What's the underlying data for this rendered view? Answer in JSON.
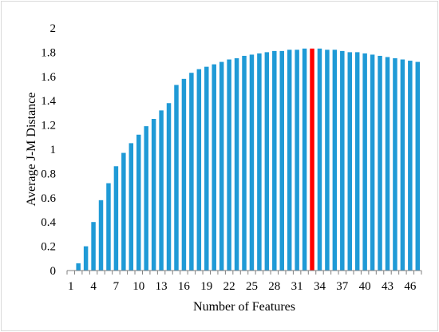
{
  "chart_data": {
    "type": "bar",
    "xlabel": "Number of Features",
    "ylabel": "Average J-M Distance",
    "ylim": [
      0,
      2
    ],
    "yticks": [
      0,
      0.2,
      0.4,
      0.6,
      0.8,
      1,
      1.2,
      1.4,
      1.6,
      1.8,
      2
    ],
    "xtick_labels": [
      "1",
      "4",
      "7",
      "10",
      "13",
      "16",
      "19",
      "22",
      "25",
      "28",
      "31",
      "34",
      "37",
      "40",
      "43",
      "46"
    ],
    "grid": false,
    "categories": [
      1,
      2,
      3,
      4,
      5,
      6,
      7,
      8,
      9,
      10,
      11,
      12,
      13,
      14,
      15,
      16,
      17,
      18,
      19,
      20,
      21,
      22,
      23,
      24,
      25,
      26,
      27,
      28,
      29,
      30,
      31,
      32,
      33,
      34,
      35,
      36,
      37,
      38,
      39,
      40,
      41,
      42,
      43,
      44,
      45,
      46,
      47
    ],
    "values": [
      0.0,
      0.06,
      0.2,
      0.4,
      0.58,
      0.72,
      0.86,
      0.97,
      1.05,
      1.12,
      1.19,
      1.25,
      1.32,
      1.38,
      1.53,
      1.58,
      1.63,
      1.66,
      1.68,
      1.7,
      1.72,
      1.74,
      1.75,
      1.77,
      1.78,
      1.79,
      1.8,
      1.81,
      1.81,
      1.82,
      1.82,
      1.83,
      1.83,
      1.83,
      1.82,
      1.82,
      1.81,
      1.8,
      1.8,
      1.79,
      1.78,
      1.77,
      1.76,
      1.75,
      1.74,
      1.73,
      1.72
    ],
    "highlight_category": 33,
    "colors": {
      "bar": "#1f9ad6",
      "highlight": "#ff0000",
      "axis": "#808080"
    }
  }
}
